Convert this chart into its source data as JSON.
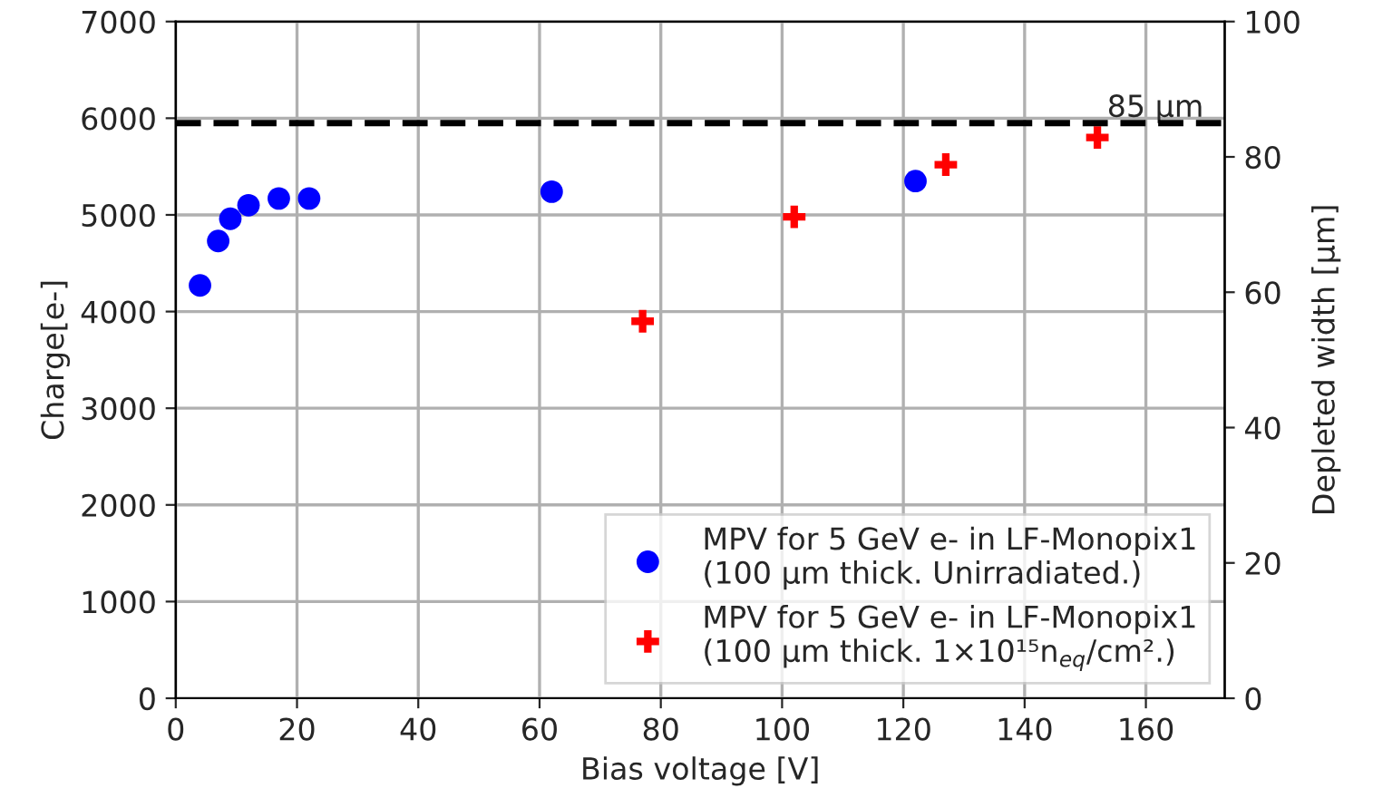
{
  "chart_data": {
    "type": "scatter",
    "xlabel": "Bias voltage [V]",
    "ylabel": "Charge[e-]",
    "y2label": "Depleted width [μm]",
    "xlim": [
      0,
      173
    ],
    "xticks": [
      0,
      20,
      40,
      60,
      80,
      100,
      120,
      140,
      160
    ],
    "ylim": [
      0,
      7000
    ],
    "yticks": [
      0,
      1000,
      2000,
      3000,
      4000,
      5000,
      6000,
      7000
    ],
    "y2lim": [
      0,
      100
    ],
    "y2ticks": [
      0,
      20,
      40,
      60,
      80,
      100
    ],
    "grid": true,
    "legend": "bottom right",
    "series": [
      {
        "name": "MPV for 5 GeV e- in LF-Monopix1\n(100 μm thick. Unirradiated.)",
        "color": "#0000ff",
        "marker": "circle",
        "x": [
          4,
          7,
          9,
          12,
          17,
          22,
          62,
          122
        ],
        "values": [
          4270,
          4730,
          4960,
          5100,
          5170,
          5170,
          5240,
          5350
        ]
      },
      {
        "name": "MPV for 5 GeV e- in LF-Monopix1\n(100 μm thick. 1×10¹⁵n$_{eq}$/cm².)",
        "color": "#ff0000",
        "marker": "cross",
        "x": [
          77,
          102,
          127,
          152
        ],
        "values": [
          3900,
          4980,
          5520,
          5800
        ]
      }
    ],
    "ref_lines": [
      {
        "axis": "y2",
        "value": 85,
        "label": "85 μm",
        "color": "#000000",
        "line_style": "dashed"
      }
    ]
  }
}
